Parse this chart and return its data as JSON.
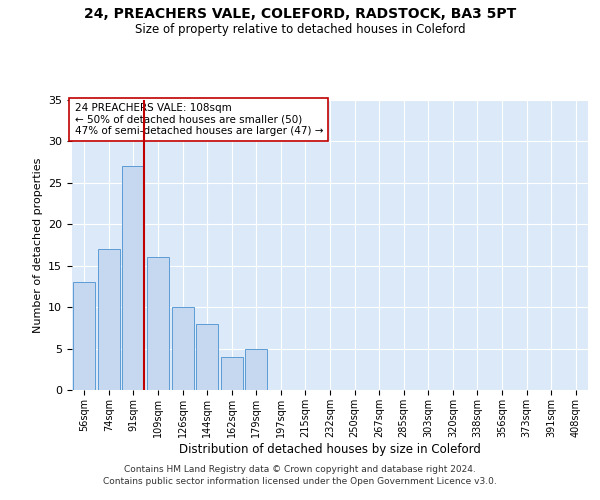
{
  "title1": "24, PREACHERS VALE, COLEFORD, RADSTOCK, BA3 5PT",
  "title2": "Size of property relative to detached houses in Coleford",
  "xlabel": "Distribution of detached houses by size in Coleford",
  "ylabel": "Number of detached properties",
  "annotation_line1": "24 PREACHERS VALE: 108sqm",
  "annotation_line2": "← 50% of detached houses are smaller (50)",
  "annotation_line3": "47% of semi-detached houses are larger (47) →",
  "bins": [
    "56sqm",
    "74sqm",
    "91sqm",
    "109sqm",
    "126sqm",
    "144sqm",
    "162sqm",
    "179sqm",
    "197sqm",
    "215sqm",
    "232sqm",
    "250sqm",
    "267sqm",
    "285sqm",
    "303sqm",
    "320sqm",
    "338sqm",
    "356sqm",
    "373sqm",
    "391sqm",
    "408sqm"
  ],
  "values": [
    13,
    17,
    27,
    16,
    10,
    8,
    4,
    5,
    0,
    0,
    0,
    0,
    0,
    0,
    0,
    0,
    0,
    0,
    0,
    0,
    0
  ],
  "bar_color": "#c5d8f0",
  "bar_edge_color": "#5b9bd5",
  "marker_color": "#c00000",
  "ylim": [
    0,
    35
  ],
  "yticks": [
    0,
    5,
    10,
    15,
    20,
    25,
    30,
    35
  ],
  "bg_color": "#dce9f8",
  "grid_color": "#ffffff",
  "footnote1": "Contains HM Land Registry data © Crown copyright and database right 2024.",
  "footnote2": "Contains public sector information licensed under the Open Government Licence v3.0."
}
